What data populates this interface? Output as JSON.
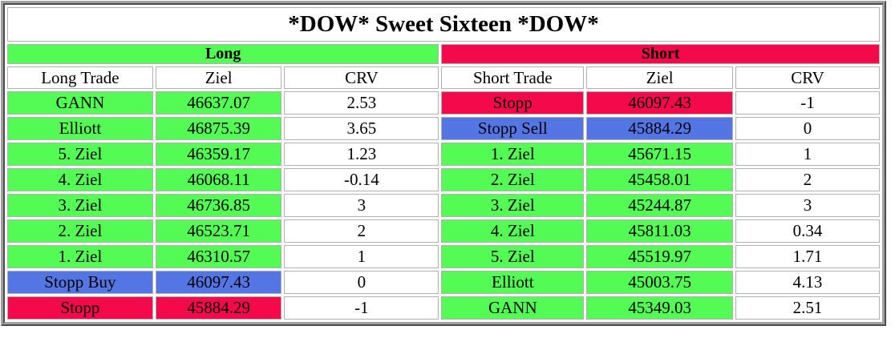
{
  "title": "*DOW* Sweet Sixteen *DOW*",
  "colors": {
    "yellow": "#f4f45a",
    "green": "#54fb54",
    "red": "#f40a4b",
    "blue": "#5376e4",
    "white": "#ffffff"
  },
  "sections": [
    {
      "label": "Long",
      "color": "green",
      "columns": [
        "Long Trade",
        "Ziel",
        "CRV"
      ]
    },
    {
      "label": "Short",
      "color": "red",
      "columns": [
        "Short Trade",
        "Ziel",
        "CRV"
      ]
    }
  ],
  "rows": [
    {
      "long": {
        "trade": "GANN",
        "ziel": "46637.07",
        "crv": "2.53",
        "color": "green"
      },
      "short": {
        "trade": "Stopp",
        "ziel": "46097.43",
        "crv": "-1",
        "color": "red"
      }
    },
    {
      "long": {
        "trade": "Elliott",
        "ziel": "46875.39",
        "crv": "3.65",
        "color": "green"
      },
      "short": {
        "trade": "Stopp Sell",
        "ziel": "45884.29",
        "crv": "0",
        "color": "blue"
      }
    },
    {
      "long": {
        "trade": "5. Ziel",
        "ziel": "46359.17",
        "crv": "1.23",
        "color": "green"
      },
      "short": {
        "trade": "1. Ziel",
        "ziel": "45671.15",
        "crv": "1",
        "color": "green"
      }
    },
    {
      "long": {
        "trade": "4. Ziel",
        "ziel": "46068.11",
        "crv": "-0.14",
        "color": "green"
      },
      "short": {
        "trade": "2. Ziel",
        "ziel": "45458.01",
        "crv": "2",
        "color": "green"
      }
    },
    {
      "long": {
        "trade": "3. Ziel",
        "ziel": "46736.85",
        "crv": "3",
        "color": "green"
      },
      "short": {
        "trade": "3. Ziel",
        "ziel": "45244.87",
        "crv": "3",
        "color": "green"
      }
    },
    {
      "long": {
        "trade": "2. Ziel",
        "ziel": "46523.71",
        "crv": "2",
        "color": "green"
      },
      "short": {
        "trade": "4. Ziel",
        "ziel": "45811.03",
        "crv": "0.34",
        "color": "green"
      }
    },
    {
      "long": {
        "trade": "1. Ziel",
        "ziel": "46310.57",
        "crv": "1",
        "color": "green"
      },
      "short": {
        "trade": "5. Ziel",
        "ziel": "45519.97",
        "crv": "1.71",
        "color": "green"
      }
    },
    {
      "long": {
        "trade": "Stopp Buy",
        "ziel": "46097.43",
        "crv": "0",
        "color": "blue"
      },
      "short": {
        "trade": "Elliott",
        "ziel": "45003.75",
        "crv": "4.13",
        "color": "green"
      }
    },
    {
      "long": {
        "trade": "Stopp",
        "ziel": "45884.29",
        "crv": "-1",
        "color": "red"
      },
      "short": {
        "trade": "GANN",
        "ziel": "45349.03",
        "crv": "2.51",
        "color": "green"
      }
    }
  ]
}
